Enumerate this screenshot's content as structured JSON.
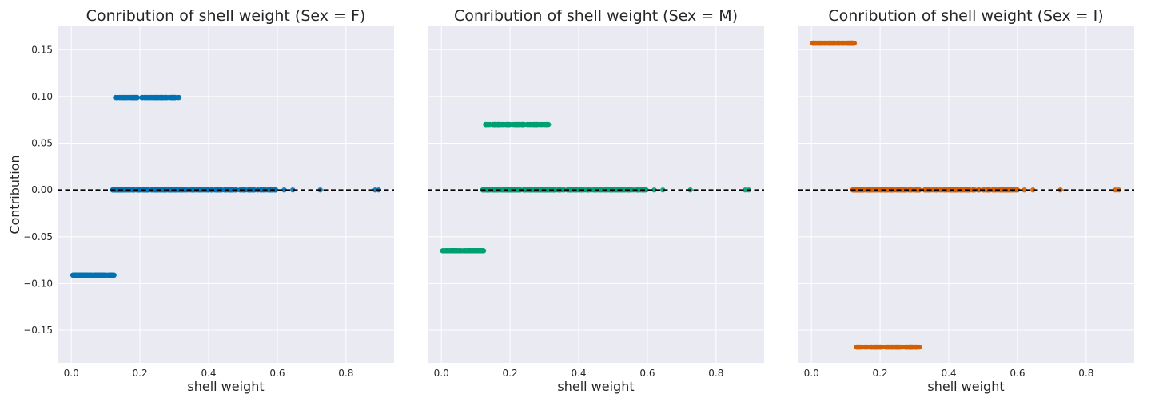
{
  "chart_data": [
    {
      "type": "scatter",
      "title": "Conribution of shell weight (Sex = F)",
      "xlabel": "shell weight",
      "ylabel": "Contribution",
      "xlim": [
        -0.04,
        0.94
      ],
      "ylim": [
        -0.185,
        0.175
      ],
      "xticks": [
        "0.0",
        "0.2",
        "0.4",
        "0.6",
        "0.8"
      ],
      "yticks": [
        "−0.15",
        "−0.10",
        "−0.05",
        "0.00",
        "0.05",
        "0.10",
        "0.15"
      ],
      "grid": true,
      "reference_line": 0,
      "color": "#0072B2",
      "segments": [
        {
          "y": -0.091,
          "x_min": 0.003,
          "x_max": 0.125
        },
        {
          "y": 0.099,
          "x_min": 0.128,
          "x_max": 0.315
        },
        {
          "y": 0.0,
          "x_min": 0.12,
          "x_max": 0.6,
          "extra_x": [
            0.12,
            0.62,
            0.645,
            0.725,
            0.885,
            0.895
          ]
        }
      ]
    },
    {
      "type": "scatter",
      "title": "Conribution of shell weight (Sex = M)",
      "xlabel": "shell weight",
      "ylabel": "",
      "xlim": [
        -0.04,
        0.94
      ],
      "ylim": [
        -0.185,
        0.175
      ],
      "xticks": [
        "0.0",
        "0.2",
        "0.4",
        "0.6",
        "0.8"
      ],
      "grid": true,
      "reference_line": 0,
      "color": "#009E73",
      "segments": [
        {
          "y": -0.065,
          "x_min": 0.003,
          "x_max": 0.125
        },
        {
          "y": 0.07,
          "x_min": 0.128,
          "x_max": 0.315
        },
        {
          "y": 0.0,
          "x_min": 0.12,
          "x_max": 0.6,
          "extra_x": [
            0.12,
            0.62,
            0.645,
            0.725,
            0.885,
            0.895
          ]
        }
      ]
    },
    {
      "type": "scatter",
      "title": "Conribution of shell weight (Sex = I)",
      "xlabel": "shell weight",
      "ylabel": "",
      "xlim": [
        -0.04,
        0.94
      ],
      "ylim": [
        -0.185,
        0.175
      ],
      "xticks": [
        "0.0",
        "0.2",
        "0.4",
        "0.6",
        "0.8"
      ],
      "grid": true,
      "reference_line": 0,
      "color": "#D55E00",
      "segments": [
        {
          "y": 0.157,
          "x_min": 0.003,
          "x_max": 0.125
        },
        {
          "y": -0.168,
          "x_min": 0.128,
          "x_max": 0.315
        },
        {
          "y": 0.0,
          "x_min": 0.12,
          "x_max": 0.6,
          "extra_x": [
            0.12,
            0.62,
            0.645,
            0.725,
            0.885,
            0.895
          ]
        }
      ]
    }
  ]
}
